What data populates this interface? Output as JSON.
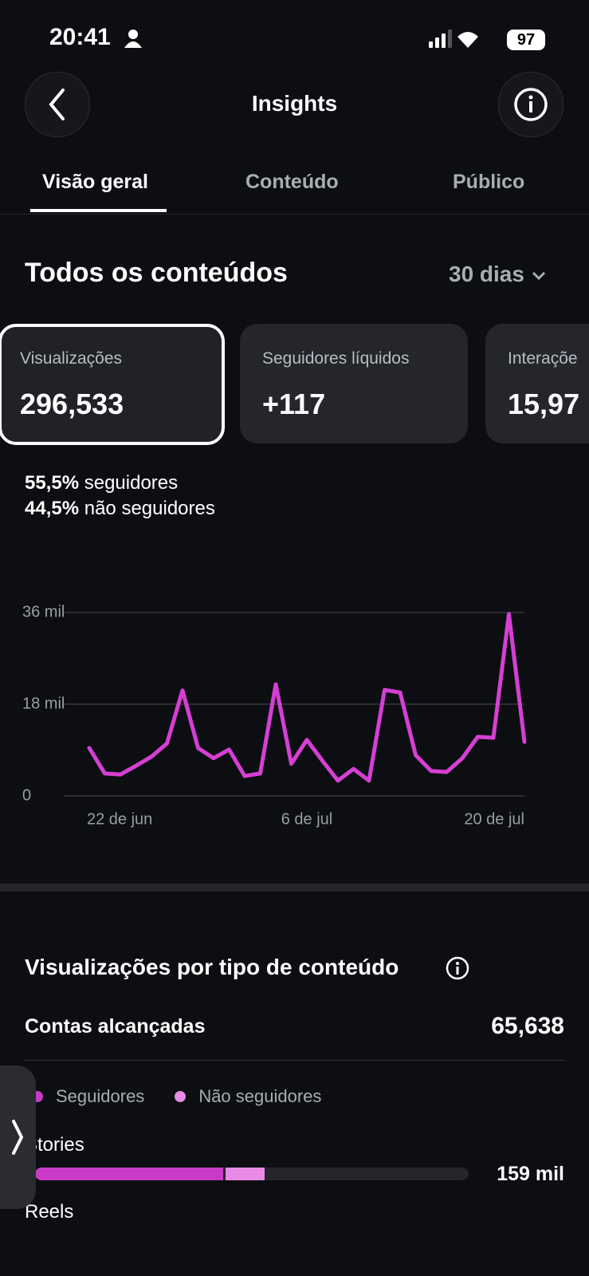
{
  "status": {
    "time": "20:41",
    "battery": "97"
  },
  "header": {
    "title": "Insights"
  },
  "tabs": [
    "Visão geral",
    "Conteúdo",
    "Público"
  ],
  "section": {
    "title": "Todos os conteúdos",
    "period": "30 dias"
  },
  "cards": [
    {
      "label": "Visualizações",
      "value": "296,533"
    },
    {
      "label": "Seguidores líquidos",
      "value": "+117"
    },
    {
      "label": "Interaçõe",
      "value": "15,97"
    }
  ],
  "split": [
    {
      "percent": "55,5%",
      "label": "seguidores"
    },
    {
      "percent": "44,5%",
      "label": "não seguidores"
    }
  ],
  "chart_data": {
    "type": "line",
    "color": "#d63fd3",
    "grid": true,
    "categories": [
      "22 de jun",
      null,
      null,
      null,
      null,
      null,
      null,
      null,
      null,
      null,
      null,
      null,
      null,
      null,
      "6 de jul",
      null,
      null,
      null,
      null,
      null,
      null,
      null,
      null,
      null,
      null,
      null,
      null,
      null,
      "20 de jul"
    ],
    "values": [
      9.4,
      4.4,
      4.2,
      5.9,
      7.7,
      10.3,
      20.7,
      9.4,
      7.4,
      9.1,
      3.9,
      4.4,
      21.9,
      6.3,
      11.0,
      6.9,
      3.0,
      5.3,
      3.0,
      20.8,
      20.3,
      8.0,
      4.9,
      4.7,
      7.4,
      11.6,
      11.4,
      35.7,
      10.6
    ],
    "ylim": [
      0,
      36
    ],
    "yticks": [
      0,
      {
        "value": 18,
        "label": "18 mil"
      },
      {
        "value": 36,
        "label": "36 mil"
      }
    ]
  },
  "breakdown": {
    "title": "Visualizações por tipo de conteúdo",
    "reach_label": "Contas alcançadas",
    "reach_value": "65,638",
    "legend": [
      {
        "name": "Seguidores",
        "color": "#c93bc6"
      },
      {
        "name": "Não seguidores",
        "color": "#e98ae6"
      }
    ],
    "xlim": [
      0,
      300
    ],
    "rows": [
      {
        "label": "Stories",
        "values": [
          130,
          29
        ],
        "total_label": "159 mil"
      },
      {
        "label": "Reels"
      }
    ]
  }
}
